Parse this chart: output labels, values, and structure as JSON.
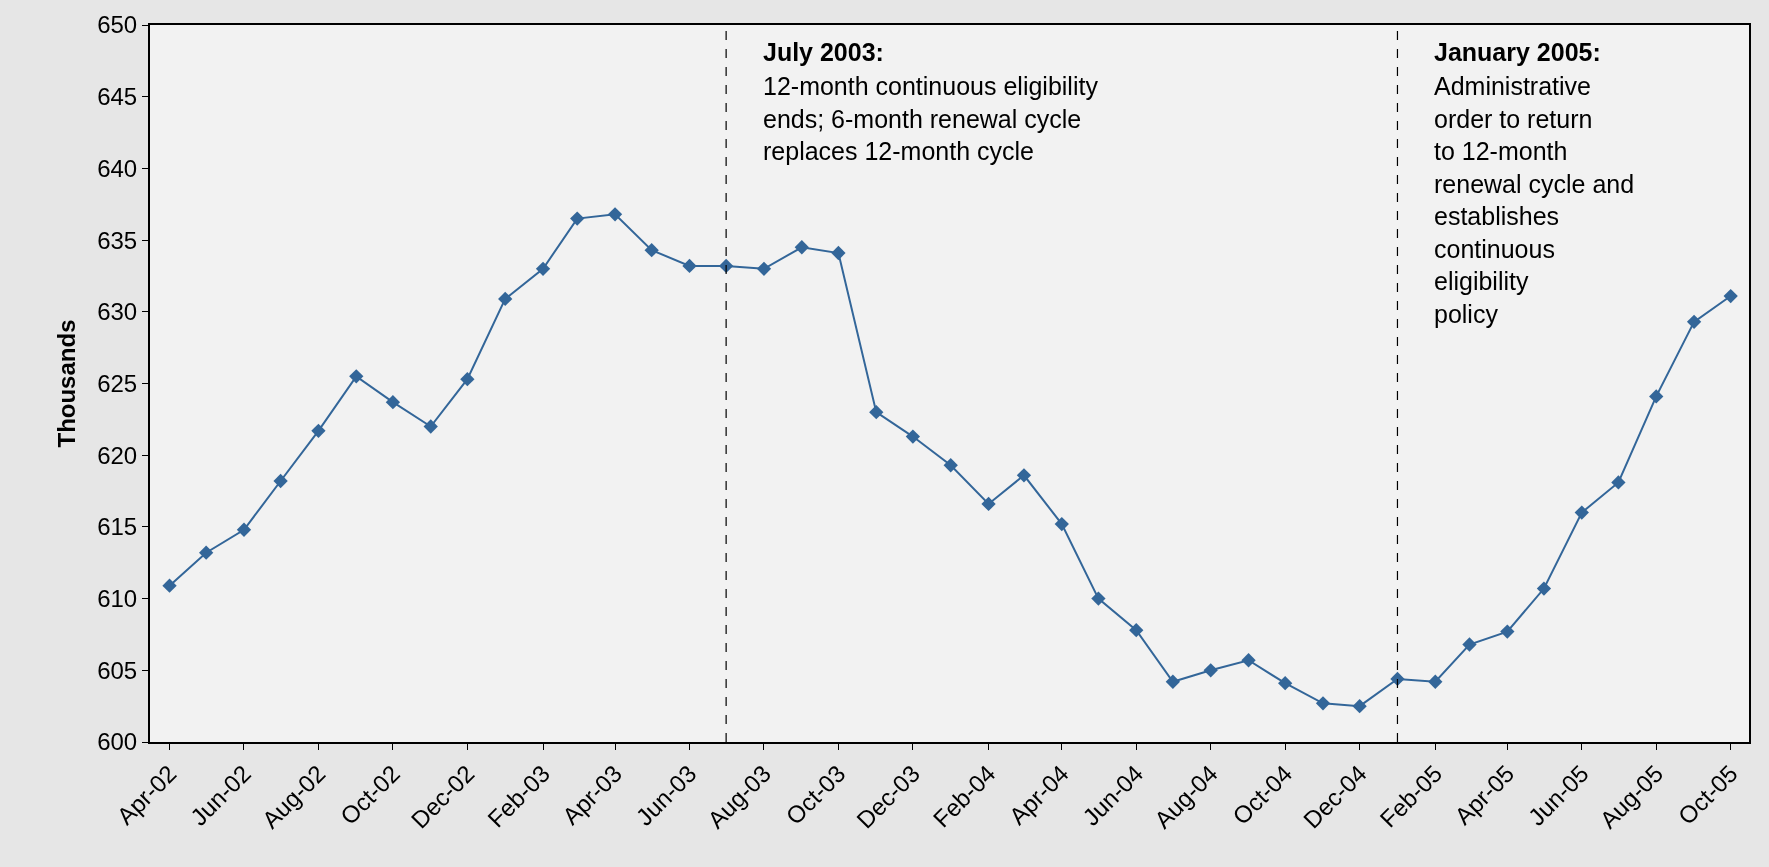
{
  "chart_data": {
    "type": "line",
    "ylabel": "Thousands",
    "x": [
      "2002-04",
      "2002-05",
      "2002-06",
      "2002-07",
      "2002-08",
      "2002-09",
      "2002-10",
      "2002-11",
      "2002-12",
      "2003-01",
      "2003-02",
      "2003-03",
      "2003-04",
      "2003-05",
      "2003-06",
      "2003-07",
      "2003-08",
      "2003-09",
      "2003-10",
      "2003-11",
      "2003-12",
      "2004-01",
      "2004-02",
      "2004-03",
      "2004-04",
      "2004-05",
      "2004-06",
      "2004-07",
      "2004-08",
      "2004-09",
      "2004-10",
      "2004-11",
      "2004-12",
      "2005-01",
      "2005-02",
      "2005-03",
      "2005-04",
      "2005-05",
      "2005-06",
      "2005-07",
      "2005-08",
      "2005-09",
      "2005-10"
    ],
    "series": [
      {
        "color": "#336699",
        "values": [
          610.9,
          613.2,
          614.8,
          618.2,
          621.7,
          625.5,
          623.7,
          622.0,
          625.3,
          630.9,
          633.0,
          636.5,
          636.8,
          634.3,
          633.2,
          633.2,
          633.0,
          634.5,
          634.1,
          623.0,
          621.3,
          619.3,
          616.6,
          618.6,
          615.2,
          610.0,
          607.8,
          604.2,
          605.0,
          605.7,
          604.1,
          602.7,
          602.5,
          604.4,
          604.2,
          606.8,
          607.7,
          610.7,
          616.0,
          618.1,
          624.1,
          629.3,
          631.1
        ]
      }
    ],
    "xlim": [
      "2002-03-16",
      "2005-10-16"
    ],
    "xticks": [
      {
        "value": "2002-04",
        "label": "Apr-02"
      },
      {
        "value": "2002-06",
        "label": "Jun-02"
      },
      {
        "value": "2002-08",
        "label": "Aug-02"
      },
      {
        "value": "2002-10",
        "label": "Oct-02"
      },
      {
        "value": "2002-12",
        "label": "Dec-02"
      },
      {
        "value": "2003-02",
        "label": "Feb-03"
      },
      {
        "value": "2003-04",
        "label": "Apr-03"
      },
      {
        "value": "2003-06",
        "label": "Jun-03"
      },
      {
        "value": "2003-08",
        "label": "Aug-03"
      },
      {
        "value": "2003-10",
        "label": "Oct-03"
      },
      {
        "value": "2003-12",
        "label": "Dec-03"
      },
      {
        "value": "2004-02",
        "label": "Feb-04"
      },
      {
        "value": "2004-04",
        "label": "Apr-04"
      },
      {
        "value": "2004-06",
        "label": "Jun-04"
      },
      {
        "value": "2004-08",
        "label": "Aug-04"
      },
      {
        "value": "2004-10",
        "label": "Oct-04"
      },
      {
        "value": "2004-12",
        "label": "Dec-04"
      },
      {
        "value": "2005-02",
        "label": "Feb-05"
      },
      {
        "value": "2005-04",
        "label": "Apr-05"
      },
      {
        "value": "2005-06",
        "label": "Jun-05"
      },
      {
        "value": "2005-08",
        "label": "Aug-05"
      },
      {
        "value": "2005-10",
        "label": "Oct-05"
      }
    ],
    "ylim": [
      600,
      650
    ],
    "yticks": [
      600,
      605,
      610,
      615,
      620,
      625,
      630,
      635,
      640,
      645,
      650
    ],
    "grid": false,
    "marker": "diamond",
    "line_style": "solid",
    "ref_lines": [
      {
        "axis": "x",
        "value": "2003-07",
        "color": "#000000",
        "line_style": "dashed"
      },
      {
        "axis": "x",
        "value": "2005-01",
        "color": "#000000",
        "line_style": "dashed"
      }
    ],
    "annotations": [
      {
        "text": "July 2003:",
        "x": "2003-07",
        "y": 647
      },
      "12-month continuous eligibility ends; 6-month renewal cycle replaces 12-month cycle",
      {
        "text": "January 2005:",
        "x": "2005-01",
        "y": 647
      },
      "Administrative order to return to 12-month renewal cycle and establishes continuous eligibility policy"
    ]
  }
}
